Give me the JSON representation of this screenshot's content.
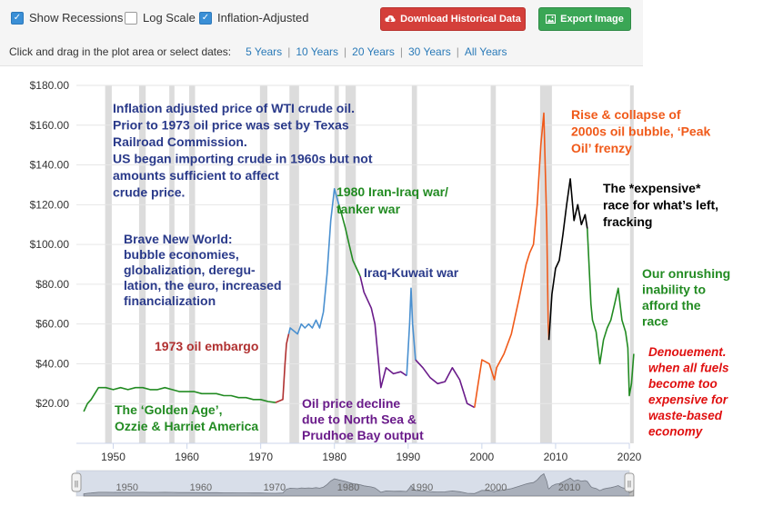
{
  "toolbar": {
    "show_recessions": {
      "label": "Show Recessions",
      "checked": true
    },
    "log_scale": {
      "label": "Log Scale",
      "checked": false
    },
    "inflation_adjusted": {
      "label": "Inflation-Adjusted",
      "checked": true
    },
    "download_label": "Download Historical Data",
    "export_label": "Export Image",
    "dates_prompt": "Click and drag in the plot area or select dates:",
    "ranges": [
      "5 Years",
      "10 Years",
      "20 Years",
      "30 Years",
      "All Years"
    ]
  },
  "colors": {
    "green": "#228B22",
    "red_brown": "#B03030",
    "blue": "#4a90d0",
    "purple": "#6a1b8a",
    "orange": "#f05a1a",
    "black": "#000000",
    "note_blue": "#2a3a8a",
    "note_red": "#e01010",
    "recession": "#dcdcdc"
  },
  "chart_data": {
    "type": "line",
    "ylim": [
      0,
      180
    ],
    "xlim": [
      1945,
      2020
    ],
    "y_ticks": [
      "$20.00",
      "$40.00",
      "$60.00",
      "$80.00",
      "$100.00",
      "$120.00",
      "$140.00",
      "$160.00",
      "$180.00"
    ],
    "y_tick_values": [
      20,
      40,
      60,
      80,
      100,
      120,
      140,
      160,
      180
    ],
    "x_ticks": [
      "1950",
      "1960",
      "1970",
      "1980",
      "1990",
      "2000",
      "2010",
      "2020"
    ],
    "x_tick_values": [
      1950,
      1960,
      1970,
      1980,
      1990,
      2000,
      2010,
      2020
    ],
    "recessions": [
      [
        1948.9,
        1949.8
      ],
      [
        1953.5,
        1954.4
      ],
      [
        1957.6,
        1958.3
      ],
      [
        1960.3,
        1961.1
      ],
      [
        1969.9,
        1970.9
      ],
      [
        1973.9,
        1975.2
      ],
      [
        1980.0,
        1980.6
      ],
      [
        1981.5,
        1982.9
      ],
      [
        1990.5,
        1991.2
      ],
      [
        2001.2,
        2001.9
      ],
      [
        2007.9,
        2009.5
      ],
      [
        2020.1,
        2020.4
      ]
    ],
    "series": [
      {
        "color_key": "green",
        "points": [
          [
            1946,
            16
          ],
          [
            1946.5,
            20
          ],
          [
            1947,
            22
          ],
          [
            1948,
            28
          ],
          [
            1949,
            28
          ],
          [
            1950,
            27
          ],
          [
            1951,
            28
          ],
          [
            1952,
            27
          ],
          [
            1953,
            28
          ],
          [
            1954,
            28
          ],
          [
            1955,
            27
          ],
          [
            1956,
            27
          ],
          [
            1957,
            28
          ],
          [
            1958,
            27
          ],
          [
            1959,
            26
          ],
          [
            1960,
            26
          ],
          [
            1961,
            26
          ],
          [
            1962,
            25
          ],
          [
            1963,
            25
          ],
          [
            1964,
            25
          ],
          [
            1965,
            24
          ],
          [
            1966,
            24
          ],
          [
            1967,
            23
          ],
          [
            1968,
            23
          ],
          [
            1969,
            22
          ],
          [
            1970,
            22
          ],
          [
            1971,
            21
          ],
          [
            1972,
            20.5
          ]
        ]
      },
      {
        "color_key": "red_brown",
        "points": [
          [
            1972,
            20.5
          ],
          [
            1973,
            22
          ],
          [
            1973.3,
            40
          ],
          [
            1973.5,
            50
          ],
          [
            1973.8,
            55
          ]
        ]
      },
      {
        "color_key": "blue",
        "points": [
          [
            1973.8,
            55
          ],
          [
            1974,
            58
          ],
          [
            1975,
            55
          ],
          [
            1975.5,
            60
          ],
          [
            1976,
            58
          ],
          [
            1976.5,
            60
          ],
          [
            1977,
            58
          ],
          [
            1977.5,
            62
          ],
          [
            1978,
            58
          ],
          [
            1978.5,
            66
          ],
          [
            1979,
            85
          ],
          [
            1979.5,
            112
          ],
          [
            1980,
            128
          ],
          [
            1980.3,
            124
          ],
          [
            1980.6,
            120
          ]
        ]
      },
      {
        "color_key": "green",
        "points": [
          [
            1980.6,
            120
          ],
          [
            1981,
            115
          ],
          [
            1981.5,
            108
          ],
          [
            1982,
            100
          ],
          [
            1982.5,
            92
          ],
          [
            1983,
            88
          ],
          [
            1983.5,
            84
          ]
        ]
      },
      {
        "color_key": "purple",
        "points": [
          [
            1983.5,
            84
          ],
          [
            1984,
            76
          ],
          [
            1985,
            68
          ],
          [
            1985.5,
            60
          ],
          [
            1986,
            40
          ],
          [
            1986.3,
            28
          ],
          [
            1987,
            38
          ],
          [
            1988,
            35
          ],
          [
            1989,
            36
          ],
          [
            1989.8,
            34
          ]
        ]
      },
      {
        "color_key": "blue",
        "points": [
          [
            1989.8,
            34
          ],
          [
            1990.2,
            60
          ],
          [
            1990.4,
            78
          ],
          [
            1990.6,
            60
          ],
          [
            1991,
            42
          ]
        ]
      },
      {
        "color_key": "purple",
        "points": [
          [
            1991,
            42
          ],
          [
            1992,
            38
          ],
          [
            1993,
            33
          ],
          [
            1994,
            30
          ],
          [
            1995,
            31
          ],
          [
            1996,
            38
          ],
          [
            1997,
            32
          ],
          [
            1998,
            20
          ],
          [
            1999,
            18
          ]
        ]
      },
      {
        "color_key": "orange",
        "points": [
          [
            1999,
            18
          ],
          [
            1999.5,
            30
          ],
          [
            2000,
            42
          ],
          [
            2001,
            40
          ],
          [
            2001.7,
            32
          ],
          [
            2002,
            38
          ],
          [
            2003,
            45
          ],
          [
            2004,
            55
          ],
          [
            2005,
            72
          ],
          [
            2006,
            90
          ],
          [
            2006.5,
            96
          ],
          [
            2007,
            100
          ],
          [
            2007.5,
            120
          ],
          [
            2008,
            150
          ],
          [
            2008.4,
            166
          ],
          [
            2008.8,
            110
          ],
          [
            2009,
            60
          ],
          [
            2009.1,
            52
          ]
        ]
      },
      {
        "color_key": "black",
        "points": [
          [
            2009.1,
            52
          ],
          [
            2009.5,
            75
          ],
          [
            2010,
            88
          ],
          [
            2010.5,
            92
          ],
          [
            2011,
            105
          ],
          [
            2011.5,
            120
          ],
          [
            2012,
            133
          ],
          [
            2012.5,
            112
          ],
          [
            2013,
            120
          ],
          [
            2013.5,
            110
          ],
          [
            2014,
            115
          ],
          [
            2014.3,
            108
          ]
        ]
      },
      {
        "color_key": "green",
        "points": [
          [
            2014.3,
            108
          ],
          [
            2014.8,
            70
          ],
          [
            2015,
            62
          ],
          [
            2015.5,
            56
          ],
          [
            2016,
            40
          ],
          [
            2016.5,
            52
          ],
          [
            2017,
            58
          ],
          [
            2017.5,
            62
          ],
          [
            2018,
            70
          ],
          [
            2018.5,
            78
          ],
          [
            2019,
            62
          ],
          [
            2019.5,
            56
          ],
          [
            2019.8,
            48
          ],
          [
            2020,
            24
          ],
          [
            2020.3,
            30
          ],
          [
            2020.6,
            45
          ]
        ]
      }
    ]
  },
  "annotations": [
    {
      "id": "intro",
      "color_key": "note_blue",
      "lines": [
        "Inflation adjusted price of WTI crude oil.",
        "Prior to 1973 oil price was set by Texas",
        "Railroad Commission.",
        "US began importing crude in 1960s but not",
        "amounts sufficient to affect",
        "crude price."
      ]
    },
    {
      "id": "brave",
      "color_key": "note_blue",
      "lines": [
        "Brave New World:",
        "bubble economies,",
        "globalization, deregu-",
        "lation, the euro, increased",
        "financialization"
      ]
    },
    {
      "id": "embargo",
      "color_key": "red_brown",
      "lines": [
        "1973 oil embargo"
      ]
    },
    {
      "id": "golden",
      "color_key": "green",
      "lines": [
        "The ‘Golden Age’,",
        "Ozzie & Harriet America"
      ]
    },
    {
      "id": "iran",
      "color_key": "green",
      "lines": [
        "1980 Iran-Iraq war/",
        "   tanker war"
      ]
    },
    {
      "id": "kuwait",
      "color_key": "note_blue",
      "lines": [
        "Iraq-Kuwait war"
      ]
    },
    {
      "id": "decline",
      "color_key": "purple",
      "lines": [
        "Oil price decline",
        "due to North Sea &",
        "Prudhoe Bay output"
      ]
    },
    {
      "id": "bubble",
      "color_key": "orange",
      "lines": [
        "Rise & collapse of",
        "2000s oil bubble, ‘Peak",
        "Oil’ frenzy"
      ]
    },
    {
      "id": "expensive",
      "color_key": "black",
      "lines": [
        "The *expensive*",
        "race for what’s left,",
        "fracking"
      ]
    },
    {
      "id": "onrushing",
      "color_key": "green",
      "lines": [
        "Our onrushing",
        "inability to",
        "afford the",
        "race"
      ]
    },
    {
      "id": "denouement",
      "color_key": "note_red",
      "lines": [
        "Denouement.",
        "when all fuels",
        "become too",
        "expensive for",
        "waste-based",
        "economy"
      ]
    }
  ],
  "navigator": {
    "labels": [
      "1950",
      "1960",
      "1970",
      "1980",
      "1990",
      "2000",
      "2010"
    ],
    "handle_glyph": "||"
  }
}
